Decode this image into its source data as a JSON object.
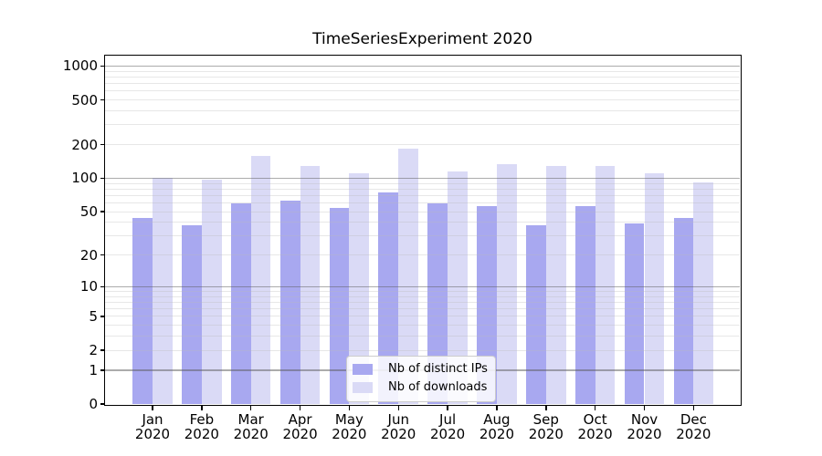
{
  "chart_data": {
    "type": "bar",
    "title": "TimeSeriesExperiment 2020",
    "categories": [
      "Jan 2020",
      "Feb 2020",
      "Mar 2020",
      "Apr 2020",
      "May 2020",
      "Jun 2020",
      "Jul 2020",
      "Aug 2020",
      "Sep 2020",
      "Oct 2020",
      "Nov 2020",
      "Dec 2020"
    ],
    "series": [
      {
        "name": "Nb of distinct IPs",
        "color": "#a8a8f0",
        "values": [
          44,
          38,
          60,
          63,
          54,
          74,
          59,
          56,
          38,
          56,
          39,
          44
        ]
      },
      {
        "name": "Nb of downloads",
        "color": "#dadaf6",
        "values": [
          101,
          97,
          158,
          129,
          111,
          183,
          116,
          135,
          130,
          128,
          110,
          91
        ]
      }
    ],
    "y_ticks": [
      0,
      1,
      2,
      5,
      10,
      20,
      50,
      100,
      200,
      500,
      1000
    ],
    "y_scale": "log1p",
    "ylim": [
      0,
      1324
    ],
    "xlabel": "",
    "ylabel": "",
    "grid": "horizontal, log minor lines, dark lines at decades",
    "legend_position": "inside-bottom-center",
    "colors": {
      "major_gridline": "#b0b0b0",
      "minor_gridline": "#e8e8e8",
      "axis_frame": "#000000",
      "text": "#000000",
      "legend_border": "#cccccc",
      "legend_background": "#ffffff"
    }
  }
}
